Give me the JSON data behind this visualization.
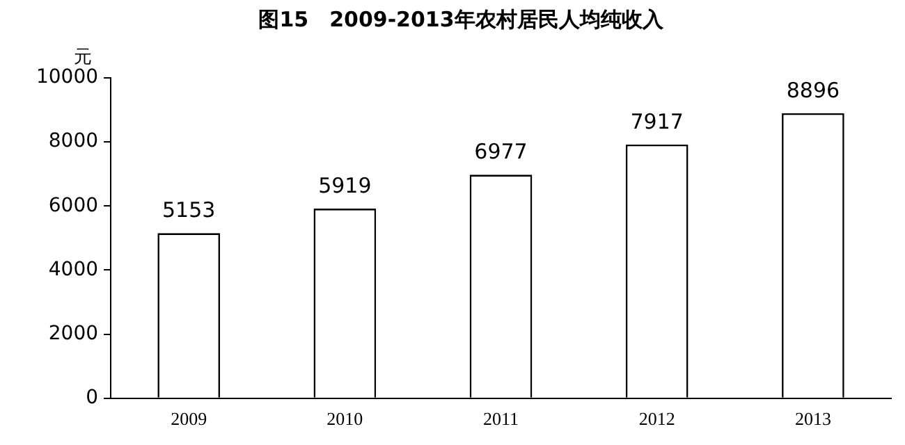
{
  "chart_data": {
    "type": "bar",
    "title": "图15　2009-2013年农村居民人均纯收入",
    "ylabel": "元",
    "categories": [
      "2009",
      "2010",
      "2011",
      "2012",
      "2013"
    ],
    "values": [
      5153,
      5919,
      6977,
      7917,
      8896
    ],
    "color": "#ffffff",
    "ylim": [
      0,
      10000
    ],
    "yticks": [
      0,
      2000,
      4000,
      6000,
      8000,
      10000
    ],
    "grid": false,
    "legend": false,
    "data_labels": true
  }
}
